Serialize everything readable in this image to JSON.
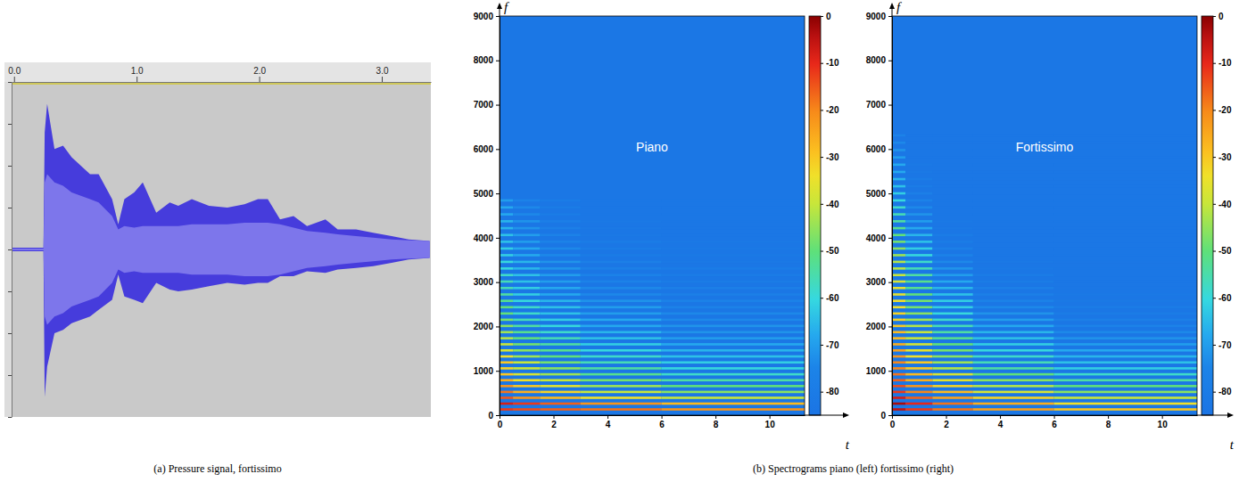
{
  "chart_data": [
    {
      "type": "area",
      "xlim": [
        -0.02,
        3.4
      ],
      "xticks": [
        {
          "value": 0,
          "label": "0.0"
        },
        {
          "value": 1,
          "label": "1.0"
        },
        {
          "value": 2,
          "label": "2.0"
        },
        {
          "value": 3,
          "label": "3.0"
        }
      ],
      "ylim": [
        -1,
        1
      ],
      "yticks": [
        -1,
        -0.75,
        -0.5,
        -0.25,
        0,
        0.25,
        0.5,
        0.75,
        1
      ],
      "tick_labels": "x",
      "x": [
        -0.02,
        0.0,
        0.24,
        0.25,
        0.27,
        0.33,
        0.4,
        0.47,
        0.62,
        0.69,
        0.8,
        0.85,
        0.9,
        0.98,
        1.05,
        1.16,
        1.27,
        1.34,
        1.45,
        1.59,
        1.74,
        1.88,
        1.99,
        2.07,
        2.17,
        2.28,
        2.39,
        2.54,
        2.64,
        2.79,
        2.93,
        3.08,
        3.22,
        3.39
      ],
      "series": [
        {
          "type": "area",
          "color": "#463cdc",
          "values": [
            0.01,
            0.01,
            0.01,
            0.7,
            0.87,
            0.6,
            0.62,
            0.55,
            0.45,
            0.45,
            0.3,
            0.15,
            0.3,
            0.34,
            0.4,
            0.22,
            0.28,
            0.26,
            0.3,
            0.26,
            0.25,
            0.27,
            0.3,
            0.3,
            0.18,
            0.2,
            0.14,
            0.18,
            0.12,
            0.12,
            0.1,
            0.08,
            0.06,
            0.05
          ],
          "lower": [
            -0.01,
            -0.01,
            -0.01,
            -0.88,
            -0.7,
            -0.5,
            -0.48,
            -0.44,
            -0.4,
            -0.36,
            -0.3,
            -0.15,
            -0.28,
            -0.3,
            -0.32,
            -0.2,
            -0.24,
            -0.25,
            -0.24,
            -0.22,
            -0.2,
            -0.21,
            -0.2,
            -0.2,
            -0.16,
            -0.16,
            -0.13,
            -0.14,
            -0.12,
            -0.11,
            -0.1,
            -0.08,
            -0.06,
            -0.05
          ]
        },
        {
          "type": "band",
          "color": "#7d76eb",
          "values": [
            0.005,
            0.005,
            0.005,
            0.4,
            0.45,
            0.4,
            0.38,
            0.34,
            0.3,
            0.28,
            0.2,
            0.12,
            0.14,
            0.13,
            0.14,
            0.14,
            0.14,
            0.14,
            0.15,
            0.15,
            0.15,
            0.16,
            0.16,
            0.16,
            0.15,
            0.13,
            0.11,
            0.1,
            0.09,
            0.08,
            0.07,
            0.06,
            0.055,
            0.05
          ]
        }
      ]
    },
    {
      "type": "heatmap",
      "title": "Piano",
      "x_label": "t",
      "y_label": "f",
      "xlim": [
        0,
        11.3
      ],
      "xticks": [
        0,
        2,
        4,
        6,
        8,
        10
      ],
      "ylim": [
        0,
        9000
      ],
      "yticks": [
        0,
        1000,
        2000,
        3000,
        4000,
        5000,
        6000,
        7000,
        8000,
        9000
      ],
      "time_bins": [
        0,
        0.5,
        1.5,
        3,
        6,
        11.3
      ],
      "frequencies": [
        130,
        261,
        392,
        524,
        656,
        789,
        922,
        1056,
        1190,
        1325,
        1461,
        1598,
        1735,
        1873,
        2012,
        2152,
        2293,
        2435,
        2578,
        2722,
        2867,
        3013,
        3160,
        3308,
        3457,
        3607,
        3758,
        3910,
        4063,
        4217,
        4372,
        4528,
        4685,
        4843
      ],
      "cells": [
        [
          -12,
          -14,
          -16,
          -18,
          -22
        ],
        [
          -8,
          -12,
          -16,
          -22,
          -28
        ],
        [
          -15,
          -22,
          -28,
          -34,
          -40
        ],
        [
          -18,
          -26,
          -32,
          -40,
          -46
        ],
        [
          -22,
          -30,
          -36,
          -44,
          -50
        ],
        [
          -26,
          -34,
          -40,
          -48,
          -54
        ],
        [
          -30,
          -38,
          -44,
          -52,
          -58
        ],
        [
          -32,
          -40,
          -46,
          -54,
          -60
        ],
        [
          -30,
          -40,
          -48,
          -56,
          -62
        ],
        [
          -34,
          -44,
          -50,
          -58,
          -64
        ],
        [
          -38,
          -46,
          -52,
          -60,
          -66
        ],
        [
          -40,
          -48,
          -54,
          -62,
          -68
        ],
        [
          -42,
          -50,
          -56,
          -64,
          -70
        ],
        [
          -44,
          -52,
          -58,
          -66,
          -72
        ],
        [
          -46,
          -54,
          -60,
          -68,
          -72
        ],
        [
          -48,
          -56,
          -62,
          -68,
          -74
        ],
        [
          -50,
          -58,
          -64,
          -70,
          -74
        ],
        [
          -50,
          -58,
          -64,
          -70,
          -76
        ],
        [
          -52,
          -60,
          -66,
          -72,
          -76
        ],
        [
          -54,
          -62,
          -68,
          -74,
          -78
        ],
        [
          -56,
          -62,
          -68,
          -74,
          -78
        ],
        [
          -56,
          -64,
          -70,
          -76,
          -80
        ],
        [
          -58,
          -64,
          -70,
          -76,
          -80
        ],
        [
          -60,
          -66,
          -72,
          -78,
          -80
        ],
        [
          -60,
          -66,
          -72,
          -78,
          -82
        ],
        [
          -62,
          -68,
          -74,
          -80,
          -82
        ],
        [
          -62,
          -68,
          -74,
          -80,
          -82
        ],
        [
          -64,
          -70,
          -76,
          -80,
          -82
        ],
        [
          -64,
          -70,
          -76,
          -82,
          -83
        ],
        [
          -66,
          -72,
          -78,
          -82,
          -83
        ],
        [
          -66,
          -72,
          -78,
          -82,
          -83
        ],
        [
          -68,
          -74,
          -80,
          -83,
          -83
        ],
        [
          -68,
          -74,
          -80,
          -83,
          -83
        ],
        [
          -70,
          -76,
          -80,
          -83,
          -83
        ]
      ],
      "background_level": -83,
      "colorbar": {
        "range": [
          -85,
          0
        ],
        "ticks": [
          0,
          -10,
          -20,
          -30,
          -40,
          -50,
          -60,
          -70,
          -80
        ]
      }
    },
    {
      "type": "heatmap",
      "title": "Fortissimo",
      "x_label": "t",
      "y_label": "f",
      "xlim": [
        0,
        11.3
      ],
      "xticks": [
        0,
        2,
        4,
        6,
        8,
        10
      ],
      "ylim": [
        0,
        9000
      ],
      "yticks": [
        0,
        1000,
        2000,
        3000,
        4000,
        5000,
        6000,
        7000,
        8000,
        9000
      ],
      "time_bins": [
        0,
        0.5,
        1.5,
        3,
        6,
        11.3
      ],
      "frequencies": [
        130,
        261,
        392,
        524,
        656,
        789,
        922,
        1056,
        1190,
        1325,
        1461,
        1598,
        1735,
        1873,
        2012,
        2152,
        2293,
        2435,
        2578,
        2722,
        2867,
        3013,
        3160,
        3308,
        3457,
        3607,
        3758,
        3910,
        4063,
        4217,
        4372,
        4528,
        4685,
        4843,
        5002,
        5162,
        5323,
        5485,
        5648,
        5812,
        5977,
        6143,
        6310
      ],
      "cells": [
        [
          -5,
          -12,
          -18,
          -24,
          -30
        ],
        [
          -3,
          -10,
          -18,
          -26,
          -34
        ],
        [
          -8,
          -16,
          -24,
          -32,
          -40
        ],
        [
          -12,
          -20,
          -28,
          -38,
          -46
        ],
        [
          -14,
          -22,
          -32,
          -42,
          -50
        ],
        [
          -16,
          -26,
          -36,
          -46,
          -54
        ],
        [
          -18,
          -28,
          -38,
          -50,
          -58
        ],
        [
          -20,
          -30,
          -42,
          -54,
          -62
        ],
        [
          -20,
          -30,
          -44,
          -56,
          -64
        ],
        [
          -22,
          -34,
          -46,
          -58,
          -66
        ],
        [
          -24,
          -36,
          -48,
          -60,
          -68
        ],
        [
          -26,
          -38,
          -50,
          -62,
          -70
        ],
        [
          -28,
          -40,
          -52,
          -64,
          -72
        ],
        [
          -28,
          -40,
          -54,
          -66,
          -74
        ],
        [
          -30,
          -42,
          -56,
          -68,
          -76
        ],
        [
          -32,
          -44,
          -58,
          -70,
          -78
        ],
        [
          -32,
          -46,
          -60,
          -72,
          -80
        ],
        [
          -34,
          -48,
          -62,
          -74,
          -80
        ],
        [
          -34,
          -48,
          -62,
          -76,
          -82
        ],
        [
          -36,
          -50,
          -64,
          -78,
          -82
        ],
        [
          -36,
          -52,
          -66,
          -78,
          -83
        ],
        [
          -38,
          -52,
          -68,
          -80,
          -83
        ],
        [
          -40,
          -54,
          -70,
          -80,
          -83
        ],
        [
          -42,
          -56,
          -72,
          -82,
          -83
        ],
        [
          -42,
          -58,
          -74,
          -82,
          -83
        ],
        [
          -44,
          -60,
          -76,
          -83,
          -83
        ],
        [
          -46,
          -62,
          -78,
          -83,
          -83
        ],
        [
          -48,
          -64,
          -80,
          -83,
          -83
        ],
        [
          -50,
          -66,
          -80,
          -83,
          -83
        ],
        [
          -52,
          -68,
          -82,
          -83,
          -83
        ],
        [
          -54,
          -70,
          -82,
          -83,
          -83
        ],
        [
          -56,
          -72,
          -83,
          -83,
          -83
        ],
        [
          -58,
          -74,
          -83,
          -83,
          -83
        ],
        [
          -60,
          -76,
          -83,
          -83,
          -83
        ],
        [
          -62,
          -78,
          -83,
          -83,
          -83
        ],
        [
          -64,
          -80,
          -83,
          -83,
          -83
        ],
        [
          -66,
          -80,
          -83,
          -83,
          -83
        ],
        [
          -68,
          -82,
          -83,
          -83,
          -83
        ],
        [
          -68,
          -82,
          -83,
          -83,
          -83
        ],
        [
          -70,
          -83,
          -83,
          -83,
          -83
        ],
        [
          -72,
          -83,
          -83,
          -83,
          -83
        ],
        [
          -74,
          -83,
          -83,
          -83,
          -83
        ],
        [
          -76,
          -83,
          -83,
          -83,
          -83
        ]
      ],
      "background_level": -83,
      "colorbar": {
        "range": [
          -85,
          0
        ],
        "ticks": [
          0,
          -10,
          -20,
          -30,
          -40,
          -50,
          -60,
          -70,
          -80
        ]
      }
    }
  ],
  "captions": [
    "(a) Pressure signal, fortissimo",
    "(b) Spectrograms piano (left) fortissimo (right)"
  ]
}
